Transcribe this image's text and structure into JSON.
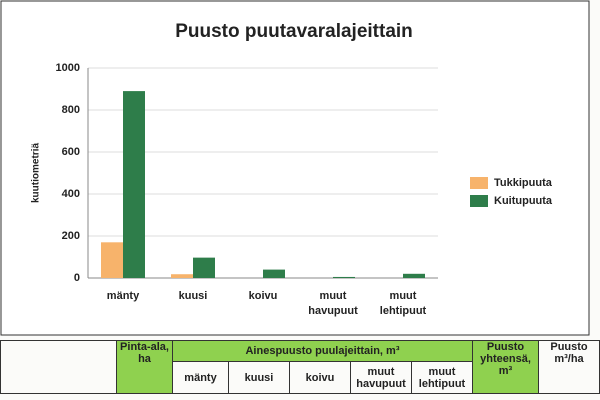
{
  "chart_data": {
    "type": "bar",
    "title": "Puusto puutavaralajeittain",
    "y_label": "kuutiometriä",
    "categories": [
      "mänty",
      "kuusi",
      "koivu",
      "muut havupuut",
      "muut lehtipuut"
    ],
    "series": [
      {
        "name": "Tukkipuuta",
        "color": "#f7b36b",
        "values": [
          170,
          18,
          0,
          0,
          0
        ]
      },
      {
        "name": "Kuitupuuta",
        "color": "#2e7d4a",
        "values": [
          890,
          97,
          40,
          5,
          20
        ]
      }
    ],
    "ylim": [
      0,
      1000
    ],
    "yticks": [
      0,
      200,
      400,
      600,
      800,
      1000
    ],
    "grid": true,
    "legend": "right"
  },
  "table": {
    "area": "Pinta-ala, ha",
    "group": "Ainespuusto puulajeittain, m³",
    "species": [
      "mänty",
      "kuusi",
      "koivu",
      "muut havupuut",
      "muut lehtipuut"
    ],
    "total": "Puusto yhteensä, m³",
    "per_ha": "Puusto m³/ha"
  }
}
